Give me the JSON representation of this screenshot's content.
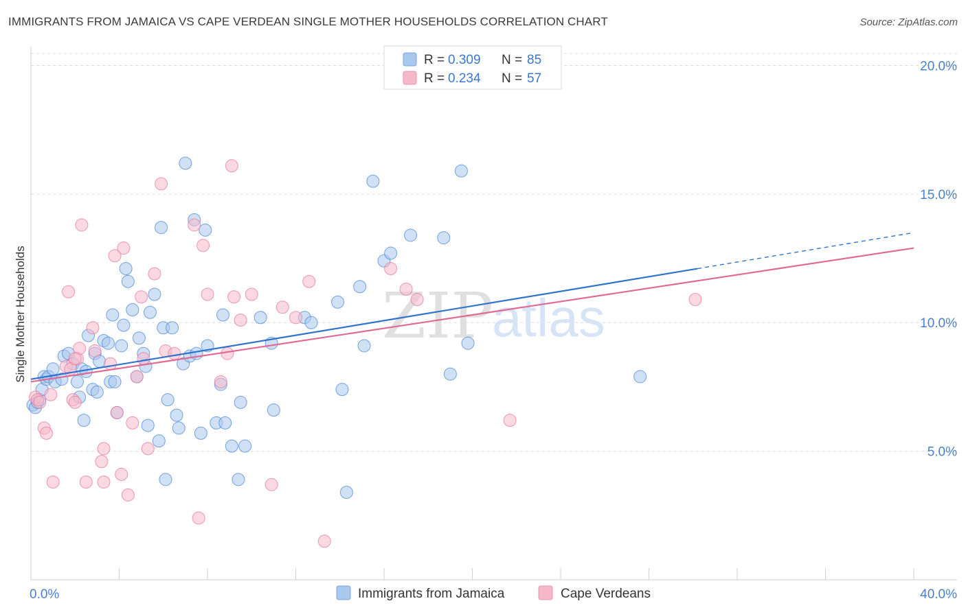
{
  "header": {
    "title": "IMMIGRANTS FROM JAMAICA VS CAPE VERDEAN SINGLE MOTHER HOUSEHOLDS CORRELATION CHART",
    "source": "Source: ZipAtlas.com"
  },
  "watermark": {
    "zip": "ZIP",
    "atlas": "atlas"
  },
  "legend": {
    "rows": [
      {
        "r_label": "R =",
        "r_value": "0.309",
        "n_label": "N =",
        "n_value": "85",
        "color": "#a9c8ee"
      },
      {
        "r_label": "R =",
        "r_value": "0.234",
        "n_label": "N =",
        "n_value": "57",
        "color": "#f6b9cb"
      }
    ]
  },
  "bottom_legend": {
    "items": [
      {
        "label": "Immigrants from Jamaica",
        "color": "#a9c8ee"
      },
      {
        "label": "Cape Verdeans",
        "color": "#f6b9cb"
      }
    ]
  },
  "chart_data": {
    "type": "scatter",
    "title": "IMMIGRANTS FROM JAMAICA VS CAPE VERDEAN SINGLE MOTHER HOUSEHOLDS CORRELATION CHART",
    "xlabel": "",
    "ylabel": "Single Mother Households",
    "xlim": [
      0,
      40
    ],
    "ylim": [
      0,
      21
    ],
    "x_tick_labels": [
      "0.0%",
      "40.0%"
    ],
    "y_ticks": [
      5,
      10,
      15,
      20
    ],
    "y_tick_labels": [
      "5.0%",
      "10.0%",
      "15.0%",
      "20.0%"
    ],
    "grid": true,
    "legend_position": "top-center",
    "series": [
      {
        "name": "Immigrants from Jamaica",
        "color": "#4a86d8",
        "fill": "#a9c8ee",
        "trend": {
          "x0": 0,
          "y0": 7.8,
          "x1": 30.2,
          "y1": 12.1,
          "dash_x1": 40,
          "dash_y1": 13.5,
          "color": "#2f73cc"
        },
        "points": [
          [
            0.1,
            6.8
          ],
          [
            0.2,
            6.7
          ],
          [
            0.3,
            6.9
          ],
          [
            0.4,
            7.0
          ],
          [
            0.5,
            7.4
          ],
          [
            0.6,
            7.9
          ],
          [
            0.7,
            7.8
          ],
          [
            0.8,
            7.9
          ],
          [
            1.1,
            7.7
          ],
          [
            1.0,
            8.2
          ],
          [
            1.4,
            7.8
          ],
          [
            1.5,
            8.7
          ],
          [
            1.7,
            8.8
          ],
          [
            1.9,
            8.4
          ],
          [
            2.1,
            7.7
          ],
          [
            2.3,
            8.2
          ],
          [
            2.2,
            7.1
          ],
          [
            2.4,
            6.2
          ],
          [
            2.5,
            8.1
          ],
          [
            2.6,
            9.5
          ],
          [
            2.8,
            7.4
          ],
          [
            2.9,
            8.8
          ],
          [
            3.0,
            7.3
          ],
          [
            3.1,
            8.5
          ],
          [
            3.3,
            9.3
          ],
          [
            3.5,
            9.2
          ],
          [
            3.6,
            7.7
          ],
          [
            3.7,
            10.3
          ],
          [
            3.8,
            7.7
          ],
          [
            3.9,
            6.5
          ],
          [
            4.1,
            9.1
          ],
          [
            4.2,
            9.9
          ],
          [
            4.3,
            12.1
          ],
          [
            4.4,
            11.6
          ],
          [
            4.6,
            10.5
          ],
          [
            4.8,
            7.9
          ],
          [
            4.9,
            9.4
          ],
          [
            5.1,
            8.8
          ],
          [
            5.2,
            8.3
          ],
          [
            5.3,
            6.0
          ],
          [
            5.4,
            10.4
          ],
          [
            5.6,
            11.1
          ],
          [
            5.8,
            5.4
          ],
          [
            5.9,
            13.7
          ],
          [
            6.0,
            9.8
          ],
          [
            6.1,
            3.9
          ],
          [
            6.2,
            7.0
          ],
          [
            6.4,
            9.8
          ],
          [
            6.6,
            6.4
          ],
          [
            6.7,
            5.9
          ],
          [
            6.9,
            8.4
          ],
          [
            7.0,
            16.2
          ],
          [
            7.2,
            8.7
          ],
          [
            7.4,
            14.0
          ],
          [
            7.5,
            8.8
          ],
          [
            7.7,
            5.7
          ],
          [
            7.9,
            13.6
          ],
          [
            8.0,
            9.1
          ],
          [
            8.4,
            6.1
          ],
          [
            8.8,
            6.1
          ],
          [
            8.6,
            7.6
          ],
          [
            8.7,
            10.3
          ],
          [
            9.1,
            5.2
          ],
          [
            9.4,
            3.9
          ],
          [
            9.5,
            6.9
          ],
          [
            9.7,
            5.2
          ],
          [
            10.4,
            10.2
          ],
          [
            10.9,
            9.2
          ],
          [
            11.0,
            6.6
          ],
          [
            12.4,
            10.2
          ],
          [
            12.7,
            10.0
          ],
          [
            13.9,
            10.8
          ],
          [
            14.1,
            7.4
          ],
          [
            14.3,
            3.4
          ],
          [
            14.9,
            11.4
          ],
          [
            15.1,
            9.1
          ],
          [
            15.5,
            15.5
          ],
          [
            16.0,
            12.4
          ],
          [
            16.3,
            12.7
          ],
          [
            17.2,
            13.4
          ],
          [
            18.7,
            13.3
          ],
          [
            19.0,
            8.0
          ],
          [
            19.5,
            15.9
          ],
          [
            19.8,
            9.2
          ],
          [
            27.6,
            7.9
          ]
        ]
      },
      {
        "name": "Cape Verdeans",
        "color": "#e8779c",
        "fill": "#f6b9cb",
        "trend": {
          "x0": 0,
          "y0": 7.7,
          "x1": 40,
          "y1": 12.9,
          "color": "#e06a93"
        },
        "points": [
          [
            0.2,
            7.1
          ],
          [
            0.3,
            7.0
          ],
          [
            0.4,
            6.9
          ],
          [
            0.6,
            5.9
          ],
          [
            0.7,
            5.7
          ],
          [
            0.9,
            7.2
          ],
          [
            1.0,
            3.8
          ],
          [
            1.6,
            8.3
          ],
          [
            1.7,
            11.2
          ],
          [
            1.8,
            8.2
          ],
          [
            1.9,
            7.0
          ],
          [
            2.0,
            6.9
          ],
          [
            2.1,
            8.6
          ],
          [
            2.2,
            9.0
          ],
          [
            2.3,
            13.8
          ],
          [
            2.5,
            3.8
          ],
          [
            2.8,
            9.8
          ],
          [
            2.9,
            8.9
          ],
          [
            3.2,
            4.6
          ],
          [
            3.3,
            5.1
          ],
          [
            3.3,
            3.8
          ],
          [
            3.6,
            8.4
          ],
          [
            3.8,
            12.6
          ],
          [
            3.9,
            6.5
          ],
          [
            4.1,
            4.1
          ],
          [
            4.2,
            12.9
          ],
          [
            4.4,
            3.3
          ],
          [
            4.6,
            6.1
          ],
          [
            4.8,
            7.9
          ],
          [
            5.0,
            11.0
          ],
          [
            5.1,
            8.6
          ],
          [
            5.3,
            5.1
          ],
          [
            5.6,
            11.9
          ],
          [
            5.9,
            15.4
          ],
          [
            6.1,
            8.9
          ],
          [
            6.5,
            8.8
          ],
          [
            7.4,
            13.8
          ],
          [
            7.6,
            2.4
          ],
          [
            7.8,
            13.0
          ],
          [
            8.0,
            11.1
          ],
          [
            8.6,
            7.7
          ],
          [
            8.9,
            8.8
          ],
          [
            9.1,
            16.1
          ],
          [
            9.2,
            11.0
          ],
          [
            9.5,
            10.1
          ],
          [
            10.0,
            11.1
          ],
          [
            10.9,
            3.7
          ],
          [
            11.4,
            10.6
          ],
          [
            12.0,
            10.2
          ],
          [
            12.6,
            11.6
          ],
          [
            13.3,
            1.5
          ],
          [
            16.3,
            12.1
          ],
          [
            17.0,
            11.3
          ],
          [
            17.5,
            10.9
          ],
          [
            21.7,
            6.2
          ],
          [
            30.1,
            10.9
          ],
          [
            2.0,
            8.6
          ]
        ]
      }
    ]
  }
}
